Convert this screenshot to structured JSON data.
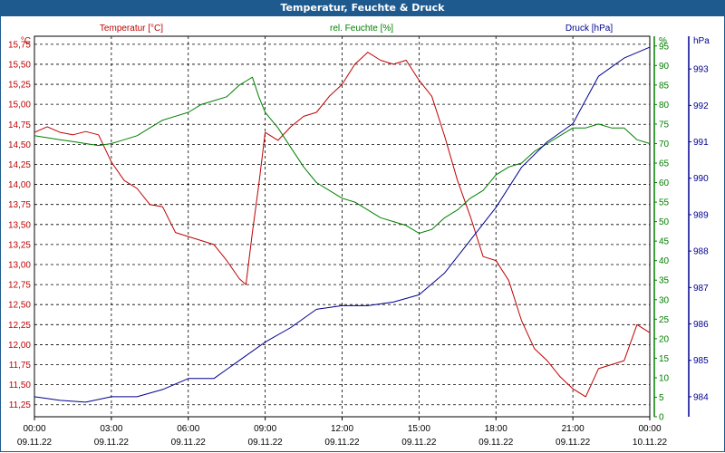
{
  "window": {
    "title": "Temperatur, Feuchte & Druck"
  },
  "chart_data": {
    "type": "line",
    "title": "Temperatur, Feuchte & Druck",
    "x_ticks": [
      {
        "time": "00:00",
        "date": "09.11.22"
      },
      {
        "time": "03:00",
        "date": "09.11.22"
      },
      {
        "time": "06:00",
        "date": "09.11.22"
      },
      {
        "time": "09:00",
        "date": "09.11.22"
      },
      {
        "time": "12:00",
        "date": "09.11.22"
      },
      {
        "time": "15:00",
        "date": "09.11.22"
      },
      {
        "time": "18:00",
        "date": "09.11.22"
      },
      {
        "time": "21:00",
        "date": "09.11.22"
      },
      {
        "time": "00:00",
        "date": "10.11.22"
      }
    ],
    "xlim_hours": [
      0,
      24
    ],
    "grid": true,
    "axes": {
      "temperature": {
        "label": "Temperatur [°C]",
        "unit": "°C",
        "color": "#c00000",
        "ylim": [
          11.1,
          15.85
        ],
        "ticks": [
          "11,25",
          "11,50",
          "11,75",
          "12,00",
          "12,25",
          "12,50",
          "12,75",
          "13,00",
          "13,25",
          "13,50",
          "13,75",
          "14,00",
          "14,25",
          "14,50",
          "14,75",
          "15,00",
          "15,25",
          "15,50",
          "15,75"
        ]
      },
      "humidity": {
        "label": "rel. Feuchte [%]",
        "unit": "%",
        "color": "#008000",
        "ylim": [
          0,
          97.5
        ],
        "ticks": [
          "0",
          "5",
          "10",
          "15",
          "20",
          "25",
          "30",
          "35",
          "40",
          "45",
          "50",
          "55",
          "60",
          "65",
          "70",
          "75",
          "80",
          "85",
          "90",
          "95"
        ]
      },
      "pressure": {
        "label": "Druck [hPa]",
        "unit": "hPa",
        "color": "#000090",
        "ylim": [
          983.45,
          993.9
        ],
        "ticks": [
          "984",
          "985",
          "986",
          "987",
          "988",
          "989",
          "990",
          "991",
          "992",
          "993"
        ]
      }
    },
    "series": [
      {
        "name": "Temperatur [°C]",
        "axis": "temperature",
        "color": "#c00000",
        "x": [
          0,
          0.5,
          1,
          1.5,
          2,
          2.5,
          3,
          3.5,
          4,
          4.5,
          5,
          5.5,
          6,
          6.5,
          7,
          7.5,
          8,
          8.25,
          8.5,
          8.75,
          9,
          9.5,
          10,
          10.5,
          11,
          11.5,
          12,
          12.5,
          13,
          13.5,
          14,
          14.5,
          15,
          15.5,
          16,
          16.5,
          17,
          17.5,
          18,
          18.5,
          19,
          19.5,
          20,
          20.5,
          21,
          21.5,
          22,
          22.5,
          23,
          23.5,
          24
        ],
        "values": [
          14.65,
          14.72,
          14.65,
          14.62,
          14.66,
          14.62,
          14.28,
          14.05,
          13.95,
          13.75,
          13.72,
          13.4,
          13.35,
          13.3,
          13.25,
          13.05,
          12.82,
          12.75,
          13.4,
          14.0,
          14.65,
          14.55,
          14.72,
          14.85,
          14.9,
          15.1,
          15.25,
          15.5,
          15.65,
          15.55,
          15.5,
          15.55,
          15.3,
          15.1,
          14.6,
          14.05,
          13.6,
          13.1,
          13.05,
          12.8,
          12.3,
          11.95,
          11.8,
          11.6,
          11.45,
          11.35,
          11.7,
          11.75,
          11.8,
          12.25,
          12.15
        ]
      },
      {
        "name": "rel. Feuchte [%]",
        "axis": "humidity",
        "color": "#008000",
        "x": [
          0,
          0.5,
          1,
          1.5,
          2,
          2.5,
          3,
          3.5,
          4,
          4.5,
          5,
          5.5,
          6,
          6.5,
          7,
          7.5,
          8,
          8.25,
          8.5,
          8.75,
          9,
          9.5,
          10,
          10.5,
          11,
          11.5,
          12,
          12.5,
          13,
          13.5,
          14,
          14.5,
          15,
          15.5,
          16,
          16.5,
          17,
          17.5,
          18,
          18.5,
          19,
          19.5,
          20,
          20.5,
          21,
          21.5,
          22,
          22.5,
          23,
          23.5,
          24
        ],
        "values": [
          72,
          71.5,
          71,
          70.5,
          70,
          69.5,
          70,
          71,
          72,
          74,
          76,
          77,
          78,
          80,
          81,
          82,
          85,
          86,
          87,
          82,
          78,
          74,
          69,
          64,
          60,
          58,
          56,
          55,
          53,
          51,
          50,
          49,
          47,
          48,
          51,
          53,
          56,
          58,
          62,
          64,
          65,
          68,
          70,
          72,
          74,
          74,
          75,
          74,
          74,
          71,
          70
        ]
      },
      {
        "name": "Druck [hPa]",
        "axis": "pressure",
        "color": "#000090",
        "x": [
          0,
          1,
          2,
          3,
          4,
          5,
          6,
          7,
          8,
          9,
          10,
          11,
          12,
          13,
          14,
          15,
          16,
          17,
          18,
          19,
          20,
          21,
          22,
          23,
          24
        ],
        "values": [
          984.0,
          983.9,
          983.85,
          984.0,
          984.0,
          984.2,
          984.5,
          984.5,
          985.0,
          985.5,
          985.9,
          986.4,
          986.5,
          986.5,
          986.6,
          986.8,
          987.4,
          988.3,
          989.2,
          990.3,
          991.0,
          991.5,
          992.8,
          993.3,
          993.6
        ]
      }
    ]
  }
}
